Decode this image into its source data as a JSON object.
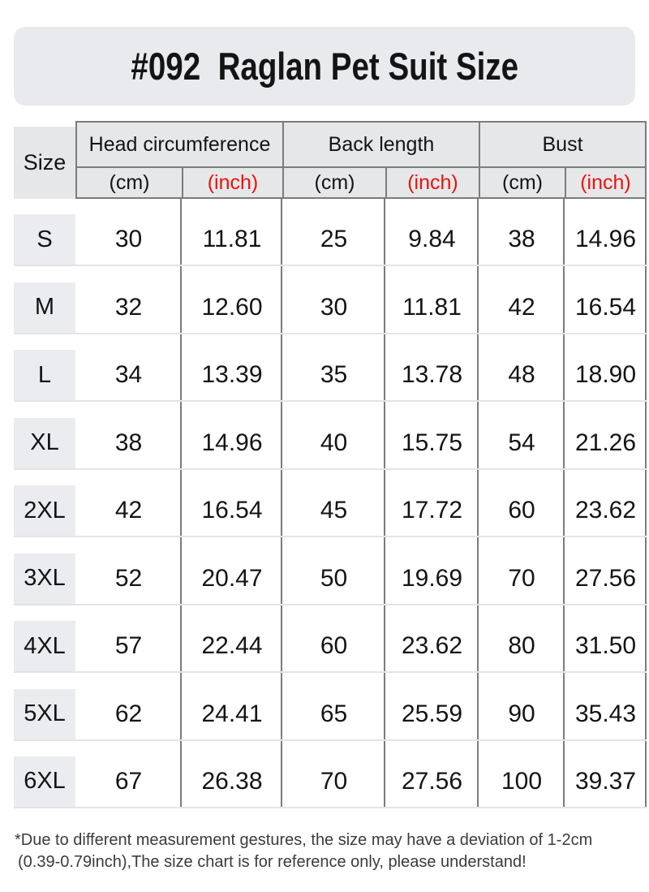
{
  "title": {
    "text": "#092  Raglan Pet Suit Size"
  },
  "colors": {
    "banner_bg": "#e9eaee",
    "header_bg": "#e6e7e9",
    "size_box_bg": "#ebecef",
    "border_dark": "#7b7c7e",
    "border_light": "#e4e4e6",
    "red": "#e8130d",
    "text_black": "#141414",
    "footer_text": "#3b3b3b"
  },
  "table": {
    "size_header": "Size",
    "groups": [
      {
        "label": "Head circumference"
      },
      {
        "label": "Back length"
      },
      {
        "label": "Bust"
      }
    ],
    "unit_cm": "(cm)",
    "unit_inch": "(inch)",
    "rows": [
      {
        "size": "S",
        "head_cm": "30",
        "head_inch": "11.81",
        "back_cm": "25",
        "back_inch": "9.84",
        "bust_cm": "38",
        "bust_inch": "14.96"
      },
      {
        "size": "M",
        "head_cm": "32",
        "head_inch": "12.60",
        "back_cm": "30",
        "back_inch": "11.81",
        "bust_cm": "42",
        "bust_inch": "16.54"
      },
      {
        "size": "L",
        "head_cm": "34",
        "head_inch": "13.39",
        "back_cm": "35",
        "back_inch": "13.78",
        "bust_cm": "48",
        "bust_inch": "18.90"
      },
      {
        "size": "XL",
        "head_cm": "38",
        "head_inch": "14.96",
        "back_cm": "40",
        "back_inch": "15.75",
        "bust_cm": "54",
        "bust_inch": "21.26"
      },
      {
        "size": "2XL",
        "head_cm": "42",
        "head_inch": "16.54",
        "back_cm": "45",
        "back_inch": "17.72",
        "bust_cm": "60",
        "bust_inch": "23.62"
      },
      {
        "size": "3XL",
        "head_cm": "52",
        "head_inch": "20.47",
        "back_cm": "50",
        "back_inch": "19.69",
        "bust_cm": "70",
        "bust_inch": "27.56"
      },
      {
        "size": "4XL",
        "head_cm": "57",
        "head_inch": "22.44",
        "back_cm": "60",
        "back_inch": "23.62",
        "bust_cm": "80",
        "bust_inch": "31.50"
      },
      {
        "size": "5XL",
        "head_cm": "62",
        "head_inch": "24.41",
        "back_cm": "65",
        "back_inch": "25.59",
        "bust_cm": "90",
        "bust_inch": "35.43"
      },
      {
        "size": "6XL",
        "head_cm": "67",
        "head_inch": "26.38",
        "back_cm": "70",
        "back_inch": "27.56",
        "bust_cm": "100",
        "bust_inch": "39.37"
      }
    ]
  },
  "footer": {
    "line1": "*Due to different measurement gestures, the size may have a deviation of 1-2cm",
    "line2": "(0.39-0.79inch),The size chart is for reference only, please understand!"
  },
  "chart_data": {
    "type": "table",
    "title": "#092 Raglan Pet Suit Size",
    "columns": [
      "Size",
      "Head circumference (cm)",
      "Head circumference (inch)",
      "Back length (cm)",
      "Back length (inch)",
      "Bust (cm)",
      "Bust (inch)"
    ],
    "rows": [
      [
        "S",
        30,
        11.81,
        25,
        9.84,
        38,
        14.96
      ],
      [
        "M",
        32,
        12.6,
        30,
        11.81,
        42,
        16.54
      ],
      [
        "L",
        34,
        13.39,
        35,
        13.78,
        48,
        18.9
      ],
      [
        "XL",
        38,
        14.96,
        40,
        15.75,
        54,
        21.26
      ],
      [
        "2XL",
        42,
        16.54,
        45,
        17.72,
        60,
        23.62
      ],
      [
        "3XL",
        52,
        20.47,
        50,
        19.69,
        70,
        27.56
      ],
      [
        "4XL",
        57,
        22.44,
        60,
        23.62,
        80,
        31.5
      ],
      [
        "5XL",
        62,
        24.41,
        65,
        25.59,
        90,
        35.43
      ],
      [
        "6XL",
        67,
        26.38,
        70,
        27.56,
        100,
        39.37
      ]
    ],
    "notes": "cm values shown in black, inch values shown in red; deviation 1-2cm (0.39-0.79inch)"
  }
}
